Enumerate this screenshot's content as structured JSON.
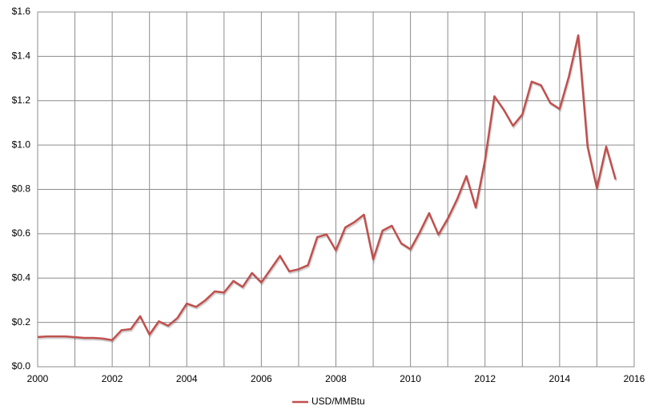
{
  "chart_data": {
    "type": "line",
    "x": [
      2000,
      2000.25,
      2000.75,
      2001.25,
      2001.5,
      2001.75,
      2002,
      2002.25,
      2002.5,
      2002.75,
      2003,
      2003.25,
      2003.5,
      2003.75,
      2004,
      2004.25,
      2004.5,
      2004.75,
      2005,
      2005.25,
      2005.5,
      2005.75,
      2006,
      2006.25,
      2006.5,
      2006.75,
      2007,
      2007.25,
      2007.5,
      2007.75,
      2008,
      2008.25,
      2008.5,
      2008.75,
      2009,
      2009.25,
      2009.5,
      2009.75,
      2010,
      2010.25,
      2010.5,
      2010.75,
      2011,
      2011.25,
      2011.5,
      2011.75,
      2012,
      2012.25,
      2012.5,
      2012.75,
      2013,
      2013.25,
      2013.5,
      2013.75,
      2014,
      2014.25,
      2014.5,
      2014.75,
      2015,
      2015.25,
      2015.5
    ],
    "series": [
      {
        "name": "USD/MMBtu",
        "color": "#c0504d",
        "values": [
          0.134,
          0.137,
          0.137,
          0.13,
          0.13,
          0.127,
          0.12,
          0.165,
          0.17,
          0.228,
          0.145,
          0.205,
          0.185,
          0.22,
          0.285,
          0.27,
          0.3,
          0.34,
          0.335,
          0.387,
          0.36,
          0.423,
          0.38,
          0.44,
          0.5,
          0.43,
          0.44,
          0.458,
          0.585,
          0.597,
          0.525,
          0.628,
          0.653,
          0.686,
          0.484,
          0.614,
          0.636,
          0.557,
          0.53,
          0.607,
          0.693,
          0.596,
          0.668,
          0.755,
          0.86,
          0.718,
          0.932,
          1.22,
          1.16,
          1.087,
          1.138,
          1.286,
          1.27,
          1.19,
          1.163,
          1.31,
          1.495,
          0.993,
          0.805,
          0.993,
          0.845
        ]
      }
    ],
    "xlim": [
      2000,
      2016
    ],
    "xticks": [
      2000,
      2002,
      2004,
      2006,
      2008,
      2010,
      2012,
      2014,
      2016
    ],
    "xminorticks": [
      2001,
      2003,
      2005,
      2007,
      2009,
      2011,
      2013,
      2015
    ],
    "ylim": [
      0,
      1.6
    ],
    "yticks": [
      {
        "value": 0,
        "label": "$0.0"
      },
      {
        "value": 0.2,
        "label": "$0.2"
      },
      {
        "value": 0.4,
        "label": "$0.4"
      },
      {
        "value": 0.6,
        "label": "$0.6"
      },
      {
        "value": 0.8,
        "label": "$0.8"
      },
      {
        "value": 1.0,
        "label": "$1.0"
      },
      {
        "value": 1.2,
        "label": "$1.2"
      },
      {
        "value": 1.4,
        "label": "$1.4"
      },
      {
        "value": 1.6,
        "label": "$1.6"
      }
    ],
    "grid": true,
    "legend": "bottom"
  }
}
